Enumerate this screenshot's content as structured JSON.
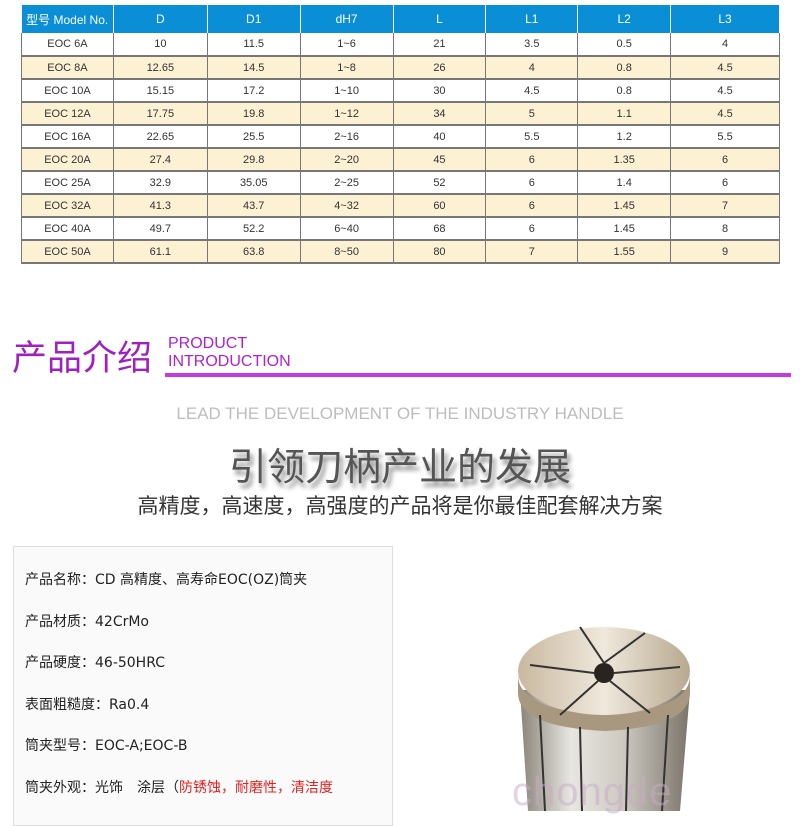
{
  "table": {
    "headers": [
      "型号 Model No.",
      "D",
      "D1",
      "dH7",
      "L",
      "L1",
      "L2",
      "L3"
    ],
    "rows": [
      [
        "EOC 6A",
        "10",
        "11.5",
        "1~6",
        "21",
        "3.5",
        "0.5",
        "4"
      ],
      [
        "EOC 8A",
        "12.65",
        "14.5",
        "1~8",
        "26",
        "4",
        "0.8",
        "4.5"
      ],
      [
        "EOC 10A",
        "15.15",
        "17.2",
        "1~10",
        "30",
        "4.5",
        "0.8",
        "4.5"
      ],
      [
        "EOC 12A",
        "17.75",
        "19.8",
        "1~12",
        "34",
        "5",
        "1.1",
        "4.5"
      ],
      [
        "EOC 16A",
        "22.65",
        "25.5",
        "2~16",
        "40",
        "5.5",
        "1.2",
        "5.5"
      ],
      [
        "EOC 20A",
        "27.4",
        "29.8",
        "2~20",
        "45",
        "6",
        "1.35",
        "6"
      ],
      [
        "EOC 25A",
        "32.9",
        "35.05",
        "2~25",
        "52",
        "6",
        "1.4",
        "6"
      ],
      [
        "EOC 32A",
        "41.3",
        "43.7",
        "4~32",
        "60",
        "6",
        "1.45",
        "7"
      ],
      [
        "EOC 40A",
        "49.7",
        "52.2",
        "6~40",
        "68",
        "6",
        "1.45",
        "8"
      ],
      [
        "EOC 50A",
        "61.1",
        "63.8",
        "8~50",
        "80",
        "7",
        "1.55",
        "9"
      ]
    ]
  },
  "section": {
    "title_cn": "产品介绍",
    "title_en_1": "PRODUCT",
    "title_en_2": "INTRODUCTION"
  },
  "lead": "LEAD THE DEVELOPMENT OF THE INDUSTRY HANDLE",
  "slogan": "引领刀柄产业的发展",
  "subtitle": "高精度，高速度，高强度的产品将是你最佳配套解决方案",
  "info": {
    "name": "产品名称：CD 高精度、高寿命EOC(OZ)筒夹",
    "material": "产品材质：42CrMo",
    "hardness": "产品硬度：46-50HRC",
    "roughness": "表面粗糙度：Ra0.4",
    "model": "筒夹型号：EOC-A;EOC-B",
    "appearance_prefix": "筒夹外观：光饰　涂层（",
    "appearance_red": "防锈蚀，耐磨性，清洁度"
  },
  "watermark": "chongde",
  "colors": {
    "header": "#0a8fd6",
    "alt_row": "#fdf1d3",
    "accent": "#c33ae0",
    "red": "#e82020"
  }
}
